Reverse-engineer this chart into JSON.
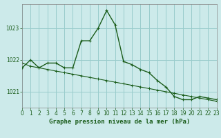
{
  "title": "Graphe pression niveau de la mer (hPa)",
  "background_color": "#cceaea",
  "grid_color": "#99cccc",
  "line_color": "#1a5c1a",
  "x_values": [
    0,
    1,
    2,
    3,
    4,
    5,
    6,
    7,
    8,
    9,
    10,
    11,
    12,
    13,
    14,
    15,
    16,
    17,
    18,
    19,
    20,
    21,
    22,
    23
  ],
  "series1": [
    1021.75,
    1022.0,
    1021.75,
    1021.9,
    1021.9,
    1021.75,
    1021.75,
    1022.6,
    1022.6,
    1023.0,
    1023.55,
    1023.1,
    1021.95,
    1021.85,
    1021.7,
    1021.6,
    1021.35,
    1021.15,
    1020.85,
    1020.75,
    1020.75,
    1020.85,
    1020.8,
    1020.75
  ],
  "series2": [
    1021.9,
    1021.8,
    1021.75,
    1021.7,
    1021.65,
    1021.6,
    1021.55,
    1021.5,
    1021.45,
    1021.4,
    1021.35,
    1021.3,
    1021.25,
    1021.2,
    1021.15,
    1021.1,
    1021.05,
    1021.0,
    1020.95,
    1020.9,
    1020.85,
    1020.8,
    1020.75,
    1020.7
  ],
  "ylim": [
    1020.5,
    1023.75
  ],
  "yticks": [
    1021,
    1022,
    1023
  ],
  "xlim": [
    0,
    23
  ],
  "title_fontsize": 6.5,
  "tick_fontsize": 5.5
}
